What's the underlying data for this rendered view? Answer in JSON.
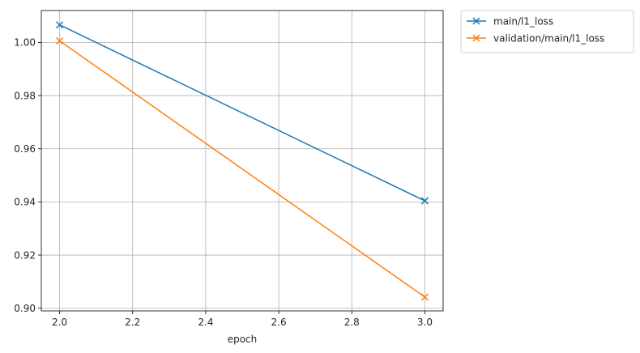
{
  "chart_data": {
    "type": "line",
    "title": "",
    "xlabel": "epoch",
    "ylabel": "",
    "xlim": [
      1.95,
      3.05
    ],
    "ylim": [
      0.899,
      1.012
    ],
    "xticks": [
      2.0,
      2.2,
      2.4,
      2.6,
      2.8,
      3.0
    ],
    "xtick_labels": [
      "2.0",
      "2.2",
      "2.4",
      "2.6",
      "2.8",
      "3.0"
    ],
    "yticks": [
      0.9,
      0.92,
      0.94,
      0.96,
      0.98,
      1.0
    ],
    "ytick_labels": [
      "0.90",
      "0.92",
      "0.94",
      "0.96",
      "0.98",
      "1.00"
    ],
    "grid": true,
    "legend_position": "outside upper right",
    "marker": "x",
    "series": [
      {
        "name": "main/l1_loss",
        "color": "#1f77b4",
        "x": [
          2.0,
          3.0
        ],
        "y": [
          1.0066,
          0.9404
        ]
      },
      {
        "name": "validation/main/l1_loss",
        "color": "#ff7f0e",
        "x": [
          2.0,
          3.0
        ],
        "y": [
          1.0006,
          0.9042
        ]
      }
    ]
  }
}
